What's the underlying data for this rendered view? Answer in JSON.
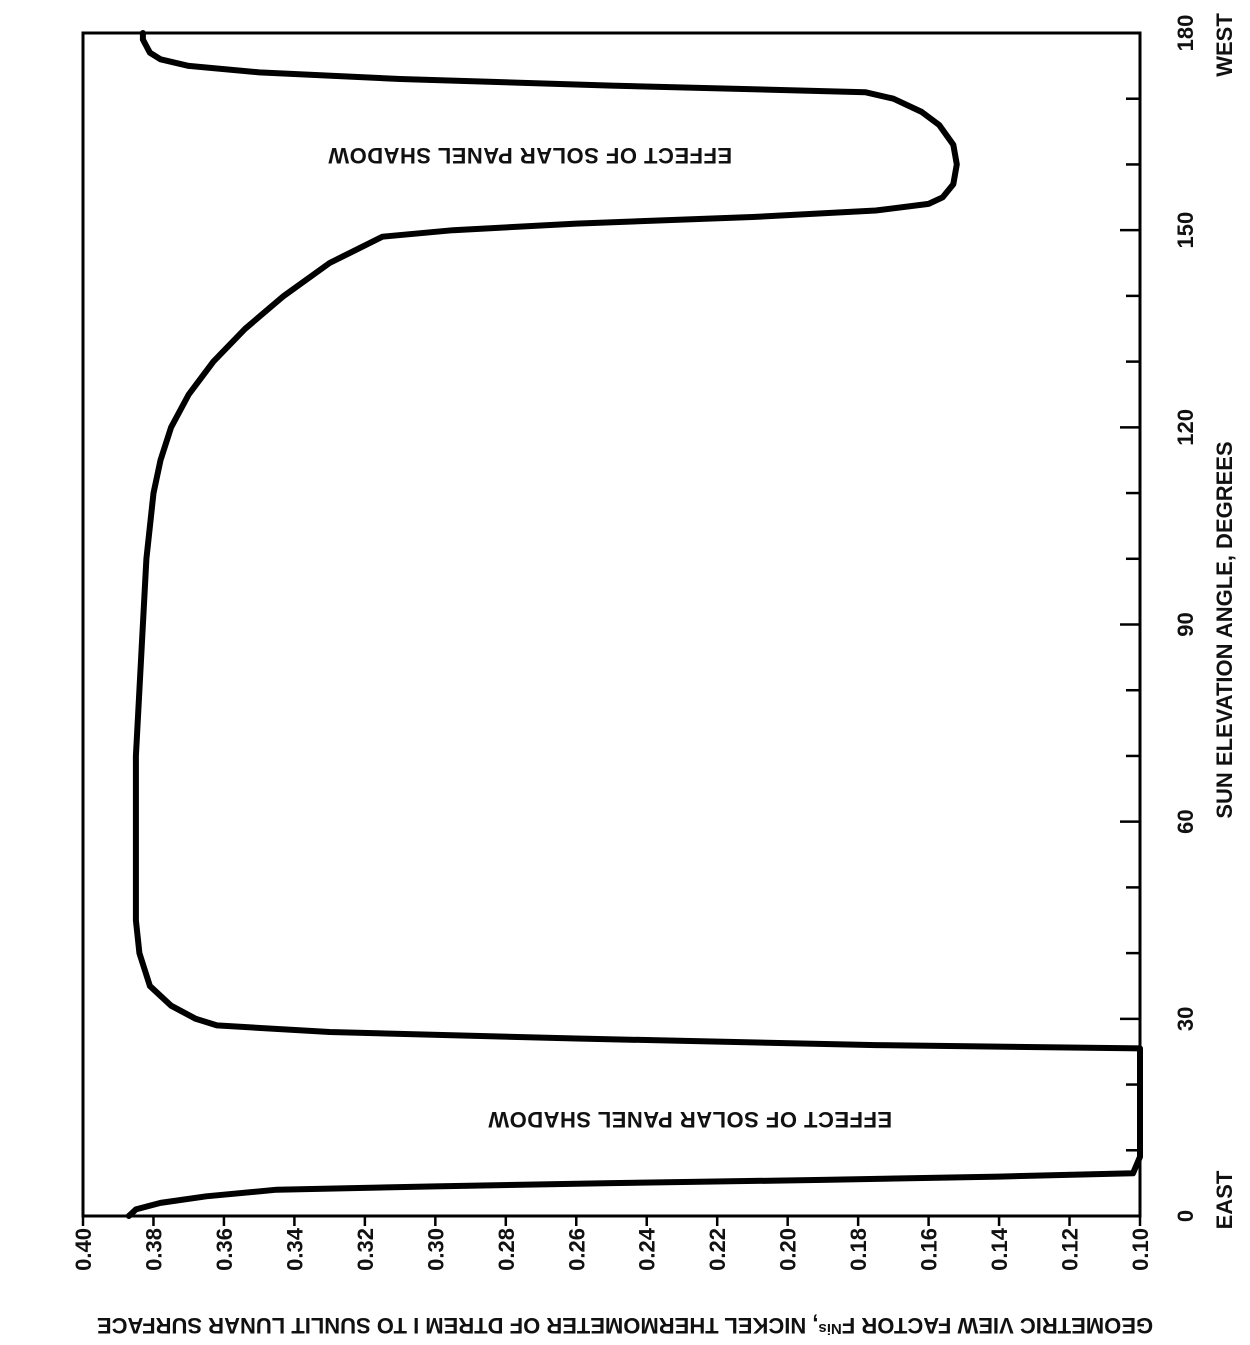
{
  "chart_data": {
    "type": "line",
    "orientation": "rotated-90-cw",
    "xlabel": "SUN ELEVATION ANGLE, DEGREES",
    "ylabel": "GEOMETRIC VIEW FACTOR F",
    "ylabel_sub": "Nis",
    "ylabel_rest": ", NICKEL THERMOMETER OF DTREM I TO SUNLIT LUNAR SURFACE",
    "xlim": [
      0,
      180
    ],
    "ylim": [
      0.1,
      0.4
    ],
    "x_ticks": [
      0,
      30,
      60,
      90,
      120,
      150,
      180
    ],
    "x_minor_step": 10,
    "y_ticks": [
      "0.40",
      "0.38",
      "0.36",
      "0.34",
      "0.32",
      "0.30",
      "0.28",
      "0.26",
      "0.24",
      "0.22",
      "0.20",
      "0.18",
      "0.16",
      "0.14",
      "0.12",
      "0.10"
    ],
    "x_end_labels": {
      "start": "EAST",
      "end": "WEST"
    },
    "annotations": [
      "EFFECT OF SOLAR PANEL SHADOW",
      "EFFECT OF SOLAR PANEL SHADOW"
    ],
    "grid": false,
    "series": [
      {
        "x": [
          0,
          1,
          2,
          3,
          4,
          4.5,
          5,
          5.5,
          6,
          6.5,
          9,
          14,
          20,
          25.5,
          26,
          27,
          28,
          29,
          30,
          32,
          35,
          40,
          45,
          50,
          60,
          70,
          80,
          90,
          100,
          110,
          115,
          120,
          125,
          130,
          135,
          140,
          145,
          149,
          150,
          151,
          152,
          153,
          154,
          155,
          157,
          160,
          163,
          166,
          168,
          170,
          171,
          172,
          173,
          174,
          175,
          176,
          177,
          178,
          179,
          180
        ],
        "y": [
          0.387,
          0.385,
          0.378,
          0.365,
          0.345,
          0.3,
          0.25,
          0.19,
          0.14,
          0.102,
          0.1,
          0.1,
          0.1,
          0.1,
          0.175,
          0.26,
          0.33,
          0.362,
          0.368,
          0.375,
          0.381,
          0.384,
          0.385,
          0.385,
          0.385,
          0.385,
          0.384,
          0.383,
          0.382,
          0.38,
          0.378,
          0.375,
          0.37,
          0.363,
          0.354,
          0.343,
          0.33,
          0.315,
          0.295,
          0.26,
          0.21,
          0.175,
          0.16,
          0.156,
          0.153,
          0.152,
          0.153,
          0.157,
          0.162,
          0.17,
          0.178,
          0.25,
          0.31,
          0.35,
          0.37,
          0.378,
          0.381,
          0.382,
          0.383,
          0.383
        ]
      }
    ]
  }
}
